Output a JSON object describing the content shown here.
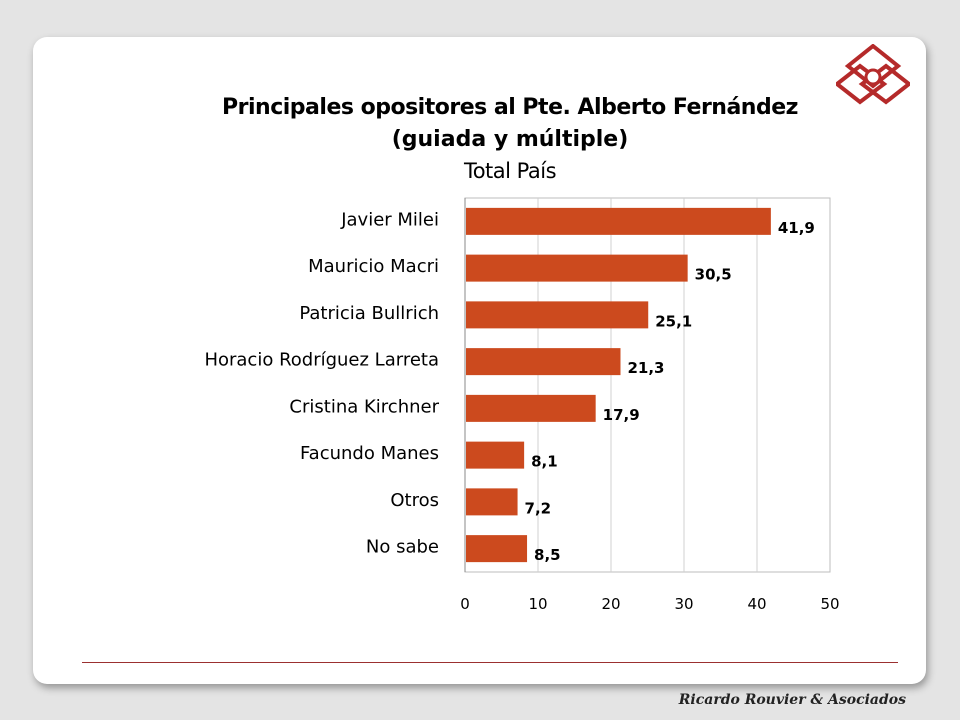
{
  "title": {
    "line1": "Principales opositores al Pte. Alberto Fernández",
    "line2": "(guiada y múltiple)",
    "line3": "Total País"
  },
  "footer": "Ricardo Rouvier & Asociados",
  "colors": {
    "bar": "#cc4a1e",
    "rule": "#9b3030",
    "logo": "#b52a2a"
  },
  "logo_icon": "diamond-logo-icon",
  "chart_data": {
    "type": "bar",
    "orientation": "horizontal",
    "title": "Principales opositores al Pte. Alberto Fernández (guiada y múltiple) Total País",
    "categories": [
      "Javier Milei",
      "Mauricio Macri",
      "Patricia Bullrich",
      "Horacio Rodríguez  Larreta",
      "Cristina Kirchner",
      "Facundo Manes",
      "Otros",
      "No sabe"
    ],
    "values": [
      41.9,
      30.5,
      25.1,
      21.3,
      17.9,
      8.1,
      7.2,
      8.5
    ],
    "value_labels": [
      "41,9",
      "30,5",
      "25,1",
      "21,3",
      "17,9",
      "8,1",
      "7,2",
      "8,5"
    ],
    "xlim": [
      0,
      50
    ],
    "x_ticks": [
      0,
      10,
      20,
      30,
      40,
      50
    ],
    "x_tick_labels": [
      "0",
      "10",
      "20",
      "30",
      "40",
      "50"
    ],
    "grid": true,
    "legend": "none"
  }
}
